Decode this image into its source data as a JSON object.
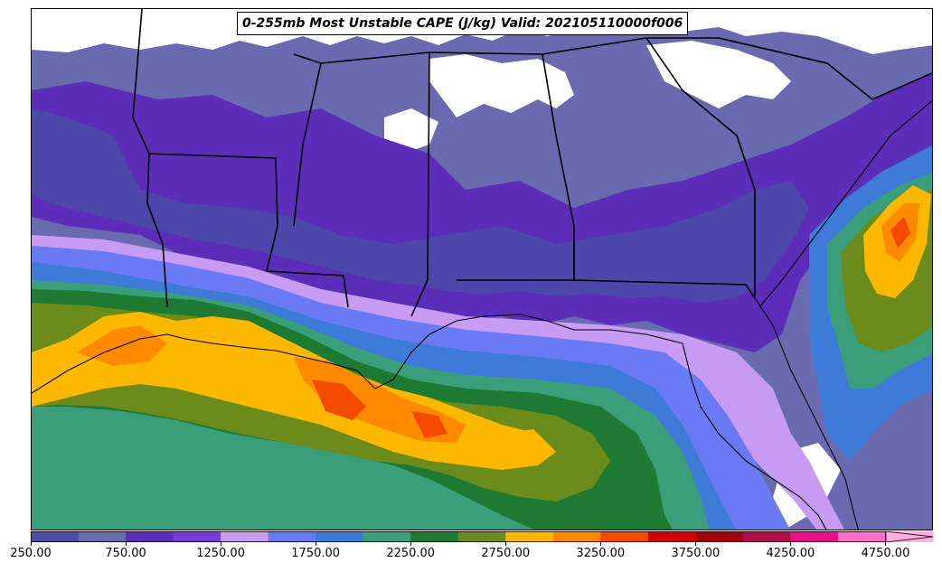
{
  "title": "0-255mb Most Unstable CAPE (J/kg) Valid: 202105110000f006",
  "colorbar": {
    "ticks": [
      "250.00",
      "750.00",
      "1250.00",
      "1750.00",
      "2250.00",
      "2750.00",
      "3250.00",
      "3750.00",
      "4250.00",
      "4750.00"
    ],
    "colors": [
      "#4B4BA8",
      "#6A6AB0",
      "#5B2DB8",
      "#7A3CD8",
      "#C89CF5",
      "#6A7AF5",
      "#3E7AD8",
      "#3A9E7A",
      "#1E7A32",
      "#6B8C1A",
      "#FFB800",
      "#FF8A00",
      "#F24B00",
      "#D40000",
      "#A0000A",
      "#B0104A",
      "#E8108A",
      "#FF6FC8",
      "#FFB0E0"
    ]
  }
}
